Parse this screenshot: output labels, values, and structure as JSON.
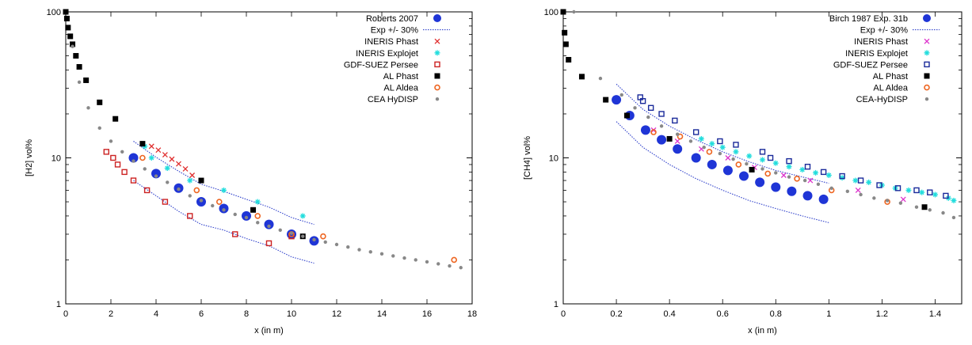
{
  "chart_data": [
    {
      "type": "scatter",
      "title": "",
      "xlabel": "x (in m)",
      "ylabel": "[H2] vol%",
      "xlim": [
        0,
        18
      ],
      "ylim": [
        1,
        100
      ],
      "yscale": "log",
      "x_ticks": [
        "0",
        "2",
        "4",
        "6",
        "8",
        "10",
        "12",
        "14",
        "16",
        "18"
      ],
      "y_ticks": [
        "1",
        "10",
        "100"
      ],
      "legend_position": "top-right",
      "series": [
        {
          "name": "Roberts 2007",
          "marker": "big-dot",
          "color": "#1f35d6",
          "points": [
            [
              3.0,
              10.0
            ],
            [
              4.0,
              7.8
            ],
            [
              5.0,
              6.2
            ],
            [
              6.0,
              5.0
            ],
            [
              7.0,
              4.5
            ],
            [
              8.0,
              4.0
            ],
            [
              9.0,
              3.5
            ],
            [
              10.0,
              3.0
            ],
            [
              11.0,
              2.7
            ]
          ]
        },
        {
          "name": "Exp +/- 30%",
          "marker": "dotted-line",
          "color": "#3344cc",
          "lines": [
            [
              [
                3.0,
                13.0
              ],
              [
                4.0,
                10.1
              ],
              [
                5.0,
                8.1
              ],
              [
                6.0,
                6.6
              ],
              [
                7.0,
                5.9
              ],
              [
                8.0,
                5.2
              ],
              [
                9.0,
                4.6
              ],
              [
                10.0,
                3.9
              ],
              [
                11.0,
                3.5
              ]
            ],
            [
              [
                3.0,
                7.0
              ],
              [
                4.0,
                5.5
              ],
              [
                5.0,
                4.3
              ],
              [
                6.0,
                3.5
              ],
              [
                7.0,
                3.2
              ],
              [
                8.0,
                2.8
              ],
              [
                9.0,
                2.5
              ],
              [
                10.0,
                2.1
              ],
              [
                11.0,
                1.9
              ]
            ]
          ]
        },
        {
          "name": "INERIS Phast",
          "marker": "cross",
          "color": "#e03030",
          "points": [
            [
              3.8,
              12.0
            ],
            [
              4.1,
              11.3
            ],
            [
              4.4,
              10.5
            ],
            [
              4.7,
              9.8
            ],
            [
              5.0,
              9.1
            ],
            [
              5.3,
              8.4
            ],
            [
              5.6,
              7.6
            ]
          ]
        },
        {
          "name": "INERIS Explojet",
          "marker": "asterisk",
          "color": "#22dddd",
          "points": [
            [
              3.5,
              12.0
            ],
            [
              3.8,
              10.0
            ],
            [
              4.5,
              8.5
            ],
            [
              5.5,
              7.0
            ],
            [
              7.0,
              6.0
            ],
            [
              8.5,
              5.0
            ],
            [
              10.5,
              4.0
            ]
          ]
        },
        {
          "name": "GDF-SUEZ Persee",
          "marker": "open-square",
          "color": "#cc2222",
          "points": [
            [
              1.8,
              11.0
            ],
            [
              2.1,
              10.0
            ],
            [
              2.3,
              9.0
            ],
            [
              2.6,
              8.0
            ],
            [
              3.0,
              7.0
            ],
            [
              3.6,
              6.0
            ],
            [
              4.4,
              5.0
            ],
            [
              5.5,
              4.0
            ],
            [
              7.5,
              3.0
            ],
            [
              9.0,
              2.6
            ],
            [
              10.0,
              2.9
            ]
          ]
        },
        {
          "name": "AL Phast",
          "marker": "filled-square",
          "color": "#000000",
          "points": [
            [
              0.0,
              100.0
            ],
            [
              0.05,
              90.0
            ],
            [
              0.1,
              78.0
            ],
            [
              0.2,
              68.0
            ],
            [
              0.3,
              60.0
            ],
            [
              0.45,
              50.0
            ],
            [
              0.6,
              42.0
            ],
            [
              0.9,
              34.0
            ],
            [
              1.5,
              24.0
            ],
            [
              2.2,
              18.5
            ],
            [
              3.4,
              12.5
            ],
            [
              6.0,
              7.0
            ],
            [
              8.3,
              4.4
            ],
            [
              10.5,
              2.9
            ]
          ]
        },
        {
          "name": "AL Aldea",
          "marker": "open-circle",
          "color": "#ee6622",
          "points": [
            [
              3.4,
              10.0
            ],
            [
              5.8,
              6.0
            ],
            [
              6.8,
              5.0
            ],
            [
              8.5,
              4.0
            ],
            [
              10.0,
              3.0
            ],
            [
              11.4,
              2.9
            ],
            [
              17.2,
              2.0
            ]
          ]
        },
        {
          "name": "CEA HyDISP",
          "marker": "small-dot",
          "color": "#888888",
          "points": [
            [
              0.3,
              58.0
            ],
            [
              0.6,
              33.0
            ],
            [
              1.0,
              22.0
            ],
            [
              1.5,
              16.0
            ],
            [
              2.0,
              13.0
            ],
            [
              2.5,
              11.0
            ],
            [
              3.0,
              9.5
            ],
            [
              3.5,
              8.4
            ],
            [
              4.0,
              7.5
            ],
            [
              4.5,
              6.8
            ],
            [
              5.0,
              6.1
            ],
            [
              5.5,
              5.5
            ],
            [
              6.0,
              5.1
            ],
            [
              6.5,
              4.7
            ],
            [
              7.0,
              4.4
            ],
            [
              7.5,
              4.1
            ],
            [
              8.0,
              3.9
            ],
            [
              8.5,
              3.6
            ],
            [
              9.0,
              3.4
            ],
            [
              9.5,
              3.2
            ],
            [
              10.0,
              3.05
            ],
            [
              10.5,
              2.9
            ],
            [
              11.0,
              2.75
            ],
            [
              11.5,
              2.65
            ],
            [
              12.0,
              2.55
            ],
            [
              12.5,
              2.45
            ],
            [
              13.0,
              2.35
            ],
            [
              13.5,
              2.27
            ],
            [
              14.0,
              2.2
            ],
            [
              14.5,
              2.13
            ],
            [
              15.0,
              2.06
            ],
            [
              15.5,
              2.0
            ],
            [
              16.0,
              1.94
            ],
            [
              16.5,
              1.88
            ],
            [
              17.0,
              1.82
            ],
            [
              17.5,
              1.77
            ]
          ]
        }
      ]
    },
    {
      "type": "scatter",
      "title": "",
      "xlabel": "x (in m)",
      "ylabel": "[CH4] vol%",
      "xlim": [
        0,
        1.5
      ],
      "ylim": [
        1,
        100
      ],
      "yscale": "log",
      "x_ticks": [
        "0",
        "0.2",
        "0.4",
        "0.6",
        "0.8",
        "1",
        "1.2",
        "1.4"
      ],
      "y_ticks": [
        "1",
        "10",
        "100"
      ],
      "legend_position": "top-right",
      "series": [
        {
          "name": "Birch 1987 Exp. 31b",
          "marker": "big-dot",
          "color": "#1f35d6",
          "points": [
            [
              0.2,
              25.0
            ],
            [
              0.25,
              19.5
            ],
            [
              0.31,
              15.5
            ],
            [
              0.37,
              13.3
            ],
            [
              0.43,
              11.5
            ],
            [
              0.5,
              10.0
            ],
            [
              0.56,
              9.0
            ],
            [
              0.62,
              8.2
            ],
            [
              0.68,
              7.5
            ],
            [
              0.74,
              6.8
            ],
            [
              0.8,
              6.3
            ],
            [
              0.86,
              5.9
            ],
            [
              0.92,
              5.5
            ],
            [
              0.98,
              5.2
            ]
          ]
        },
        {
          "name": "Exp +/- 30%",
          "marker": "dotted-line",
          "color": "#3344cc",
          "lines": [
            [
              [
                0.2,
                32.0
              ],
              [
                0.3,
                21.5
              ],
              [
                0.4,
                16.5
              ],
              [
                0.5,
                13.3
              ],
              [
                0.6,
                11.0
              ],
              [
                0.7,
                9.4
              ],
              [
                0.8,
                8.2
              ],
              [
                0.9,
                7.4
              ],
              [
                1.0,
                6.7
              ]
            ],
            [
              [
                0.2,
                17.7
              ],
              [
                0.3,
                11.8
              ],
              [
                0.4,
                9.0
              ],
              [
                0.5,
                7.2
              ],
              [
                0.6,
                6.0
              ],
              [
                0.7,
                5.1
              ],
              [
                0.8,
                4.5
              ],
              [
                0.9,
                4.0
              ],
              [
                1.0,
                3.6
              ]
            ]
          ]
        },
        {
          "name": "INERIS Phast",
          "marker": "cross",
          "color": "#dd33cc",
          "points": [
            [
              0.34,
              15.5
            ],
            [
              0.43,
              13.0
            ],
            [
              0.52,
              11.5
            ],
            [
              0.62,
              10.0
            ],
            [
              0.72,
              8.6
            ],
            [
              0.83,
              7.6
            ],
            [
              0.93,
              7.0
            ],
            [
              1.11,
              6.0
            ],
            [
              1.28,
              5.2
            ]
          ]
        },
        {
          "name": "INERIS Explojet",
          "marker": "asterisk",
          "color": "#22dddd",
          "points": [
            [
              0.52,
              13.5
            ],
            [
              0.56,
              12.5
            ],
            [
              0.6,
              11.8
            ],
            [
              0.65,
              11.0
            ],
            [
              0.7,
              10.3
            ],
            [
              0.75,
              9.7
            ],
            [
              0.8,
              9.2
            ],
            [
              0.85,
              8.7
            ],
            [
              0.9,
              8.3
            ],
            [
              0.95,
              7.9
            ],
            [
              1.0,
              7.6
            ],
            [
              1.05,
              7.3
            ],
            [
              1.1,
              7.0
            ],
            [
              1.15,
              6.8
            ],
            [
              1.2,
              6.5
            ],
            [
              1.25,
              6.2
            ],
            [
              1.3,
              6.0
            ],
            [
              1.35,
              5.8
            ],
            [
              1.4,
              5.6
            ],
            [
              1.45,
              5.3
            ],
            [
              1.47,
              5.1
            ]
          ]
        },
        {
          "name": "GDF-SUEZ Persee",
          "marker": "open-square",
          "color": "#1a2a9a",
          "points": [
            [
              0.29,
              26.0
            ],
            [
              0.3,
              24.5
            ],
            [
              0.33,
              22.0
            ],
            [
              0.37,
              20.0
            ],
            [
              0.42,
              18.0
            ],
            [
              0.5,
              15.0
            ],
            [
              0.59,
              13.0
            ],
            [
              0.65,
              12.3
            ],
            [
              0.75,
              11.0
            ],
            [
              0.78,
              10.0
            ],
            [
              0.85,
              9.5
            ],
            [
              0.92,
              8.7
            ],
            [
              0.98,
              8.0
            ],
            [
              1.05,
              7.5
            ],
            [
              1.12,
              7.0
            ],
            [
              1.19,
              6.5
            ],
            [
              1.26,
              6.2
            ],
            [
              1.33,
              6.0
            ],
            [
              1.38,
              5.8
            ],
            [
              1.44,
              5.5
            ]
          ]
        },
        {
          "name": "AL Phast",
          "marker": "filled-square",
          "color": "#000000",
          "points": [
            [
              0.0,
              100.0
            ],
            [
              0.005,
              72.0
            ],
            [
              0.01,
              60.0
            ],
            [
              0.02,
              47.0
            ],
            [
              0.07,
              36.0
            ],
            [
              0.16,
              25.0
            ],
            [
              0.24,
              19.5
            ],
            [
              0.4,
              13.5
            ],
            [
              0.71,
              8.3
            ],
            [
              1.36,
              4.6
            ]
          ]
        },
        {
          "name": "AL Aldea",
          "marker": "open-circle",
          "color": "#ee6622",
          "points": [
            [
              0.34,
              15.0
            ],
            [
              0.44,
              14.0
            ],
            [
              0.55,
              11.0
            ],
            [
              0.66,
              9.0
            ],
            [
              0.77,
              7.8
            ],
            [
              0.88,
              7.2
            ],
            [
              1.01,
              6.0
            ],
            [
              1.22,
              5.0
            ]
          ]
        },
        {
          "name": "CEA-HyDISP",
          "marker": "small-dot",
          "color": "#888888",
          "points": [
            [
              0.04,
              100.0
            ],
            [
              0.14,
              35.0
            ],
            [
              0.22,
              27.0
            ],
            [
              0.27,
              22.0
            ],
            [
              0.32,
              19.0
            ],
            [
              0.37,
              16.5
            ],
            [
              0.43,
              14.5
            ],
            [
              0.48,
              13.0
            ],
            [
              0.53,
              11.8
            ],
            [
              0.59,
              10.7
            ],
            [
              0.64,
              9.8
            ],
            [
              0.69,
              9.1
            ],
            [
              0.75,
              8.4
            ],
            [
              0.8,
              7.9
            ],
            [
              0.85,
              7.4
            ],
            [
              0.91,
              7.0
            ],
            [
              0.96,
              6.6
            ],
            [
              1.01,
              6.2
            ],
            [
              1.07,
              5.9
            ],
            [
              1.12,
              5.6
            ],
            [
              1.17,
              5.3
            ],
            [
              1.22,
              5.1
            ],
            [
              1.27,
              4.9
            ],
            [
              1.33,
              4.6
            ],
            [
              1.38,
              4.4
            ],
            [
              1.43,
              4.2
            ],
            [
              1.47,
              3.9
            ]
          ]
        }
      ]
    }
  ]
}
